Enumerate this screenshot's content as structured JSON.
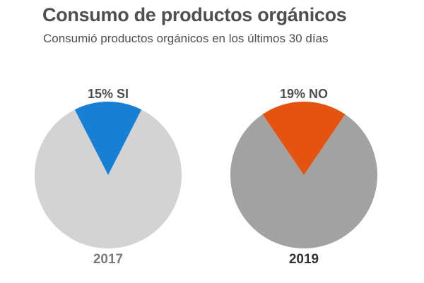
{
  "title": "Consumo de productos orgánicos",
  "subtitle": "Consumió productos orgánicos en los últimos 30 días",
  "colors": {
    "text": "#4f4f4f",
    "blue_slice": "#1780d4",
    "orange_slice": "#e4530f",
    "pie_2017_rest": "#d3d3d3",
    "pie_2019_rest": "#a2a2a2",
    "label_2017": "#7a7a7a",
    "label_2019": "#333333"
  },
  "chart_data": [
    {
      "type": "pie",
      "year_label": "2017",
      "slice_label": "15% SI",
      "slices": [
        {
          "label": "SI",
          "value": 15,
          "color": "#1780d4"
        },
        {
          "label": "",
          "value": 85,
          "color": "#d3d3d3"
        }
      ]
    },
    {
      "type": "pie",
      "year_label": "2019",
      "slice_label": "19% NO",
      "slices": [
        {
          "label": "NO",
          "value": 19,
          "color": "#e4530f"
        },
        {
          "label": "",
          "value": 81,
          "color": "#a2a2a2"
        }
      ]
    }
  ]
}
